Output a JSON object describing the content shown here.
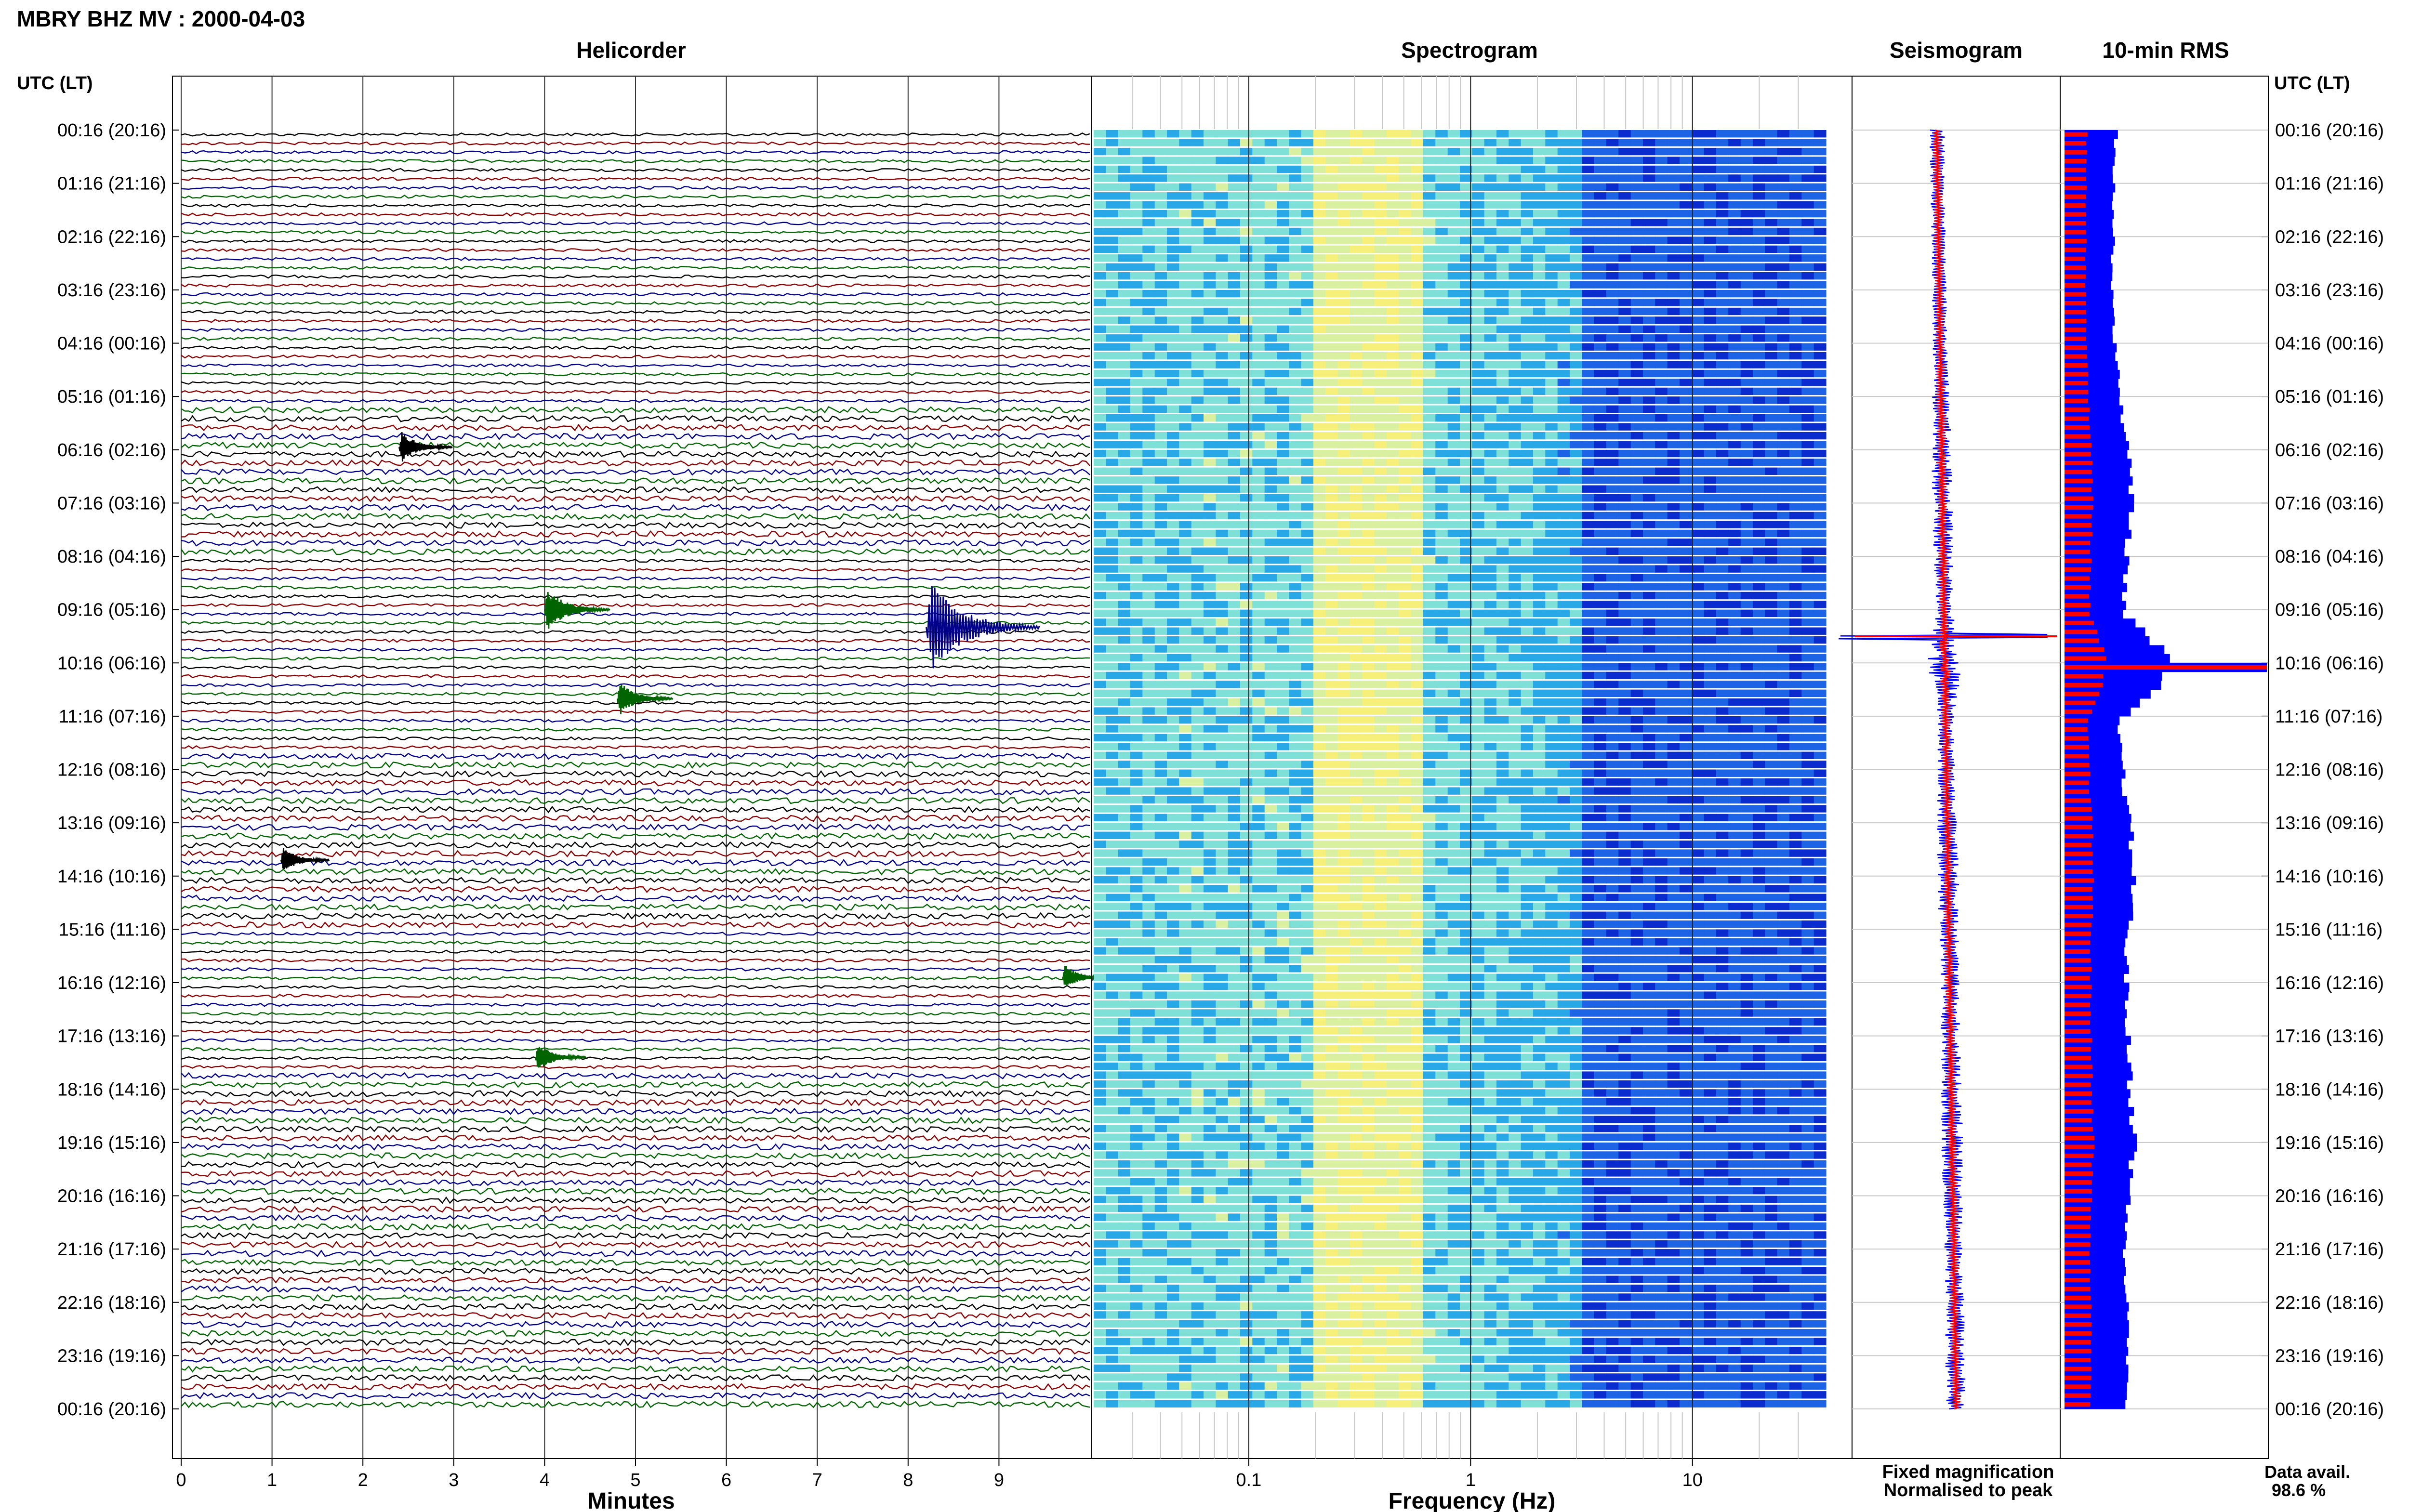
{
  "header": {
    "station_title": "MBRY BHZ MV : 2000-04-03",
    "utc_label_left": "UTC (LT)",
    "utc_label_right": "UTC (LT)"
  },
  "panels": {
    "helicorder": "Helicorder",
    "spectrogram": "Spectrogram",
    "seismogram": "Seismogram",
    "rms": "10-min RMS"
  },
  "axes": {
    "minutes_label": "Minutes",
    "frequency_label": "Frequency (Hz)",
    "minute_ticks": [
      "0",
      "1",
      "2",
      "3",
      "4",
      "5",
      "6",
      "7",
      "8",
      "9"
    ],
    "frequency_ticks": [
      "0.1",
      "1",
      "10"
    ]
  },
  "legend": {
    "fixed": "Fixed magnification",
    "normalised": "Normalised to peak",
    "fixed_color": "#0000ff",
    "normalised_color": "#ff0000"
  },
  "availability": {
    "label": "Data avail.",
    "value": "98.6 %"
  },
  "trace_colors": [
    "#000000",
    "#8b0000",
    "#00008b",
    "#006400"
  ],
  "spectrogram_colors": [
    "#0a2ccf",
    "#1c63e6",
    "#29a8e8",
    "#7fe0d8",
    "#d8f0a0",
    "#f6f07a"
  ],
  "chart_data": {
    "type": "heatmap",
    "title": "MBRY BHZ MV : 2000-04-03",
    "time_ticks_utc_lt": [
      "00:16 (20:16)",
      "01:16 (21:16)",
      "02:16 (22:16)",
      "03:16 (23:16)",
      "04:16 (00:16)",
      "05:16 (01:16)",
      "06:16 (02:16)",
      "07:16 (03:16)",
      "08:16 (04:16)",
      "09:16 (05:16)",
      "10:16 (06:16)",
      "11:16 (07:16)",
      "12:16 (08:16)",
      "13:16 (09:16)",
      "14:16 (10:16)",
      "15:16 (11:16)",
      "16:16 (12:16)",
      "17:16 (13:16)",
      "18:16 (14:16)",
      "19:16 (15:16)",
      "20:16 (16:16)",
      "21:16 (17:16)",
      "22:16 (18:16)",
      "23:16 (19:16)",
      "00:16 (20:16)"
    ],
    "helicorder": {
      "xlabel": "Minutes",
      "xlim": [
        0,
        10
      ],
      "rows": 144,
      "row_length_min": 10,
      "events": [
        {
          "hour": 5.95,
          "minute": 2.4,
          "amplitude": 2.0
        },
        {
          "hour": 9.0,
          "minute": 4.0,
          "amplitude": 3.0
        },
        {
          "hour": 9.33,
          "minute": 8.2,
          "amplitude": 7.0
        },
        {
          "hour": 10.67,
          "minute": 4.8,
          "amplitude": 2.2
        },
        {
          "hour": 13.7,
          "minute": 1.1,
          "amplitude": 1.6
        },
        {
          "hour": 15.9,
          "minute": 9.7,
          "amplitude": 1.5
        },
        {
          "hour": 17.4,
          "minute": 3.9,
          "amplitude": 1.8
        }
      ]
    },
    "spectrogram": {
      "xlabel": "Frequency (Hz)",
      "xscale": "log",
      "xlim": [
        0.02,
        40
      ],
      "rows": 144,
      "dominant_band_hz": [
        0.2,
        0.6
      ]
    },
    "seismogram": {
      "series": [
        {
          "name": "Fixed magnification",
          "color": "#0000ff"
        },
        {
          "name": "Normalised to peak",
          "color": "#ff0000"
        }
      ],
      "peak_hour": 9.5
    },
    "rms_10min": {
      "series": [
        {
          "name": "Fixed magnification",
          "color": "#0000ff"
        },
        {
          "name": "Normalised to peak",
          "color": "#ff0000"
        }
      ],
      "hourly_relative_level": [
        0.28,
        0.25,
        0.24,
        0.24,
        0.26,
        0.34,
        0.42,
        0.48,
        0.4,
        0.38,
        1.0,
        0.3,
        0.36,
        0.44,
        0.5,
        0.42,
        0.4,
        0.42,
        0.46,
        0.5,
        0.42,
        0.38,
        0.4,
        0.44,
        0.4
      ],
      "peak_hour": 10.0
    }
  }
}
